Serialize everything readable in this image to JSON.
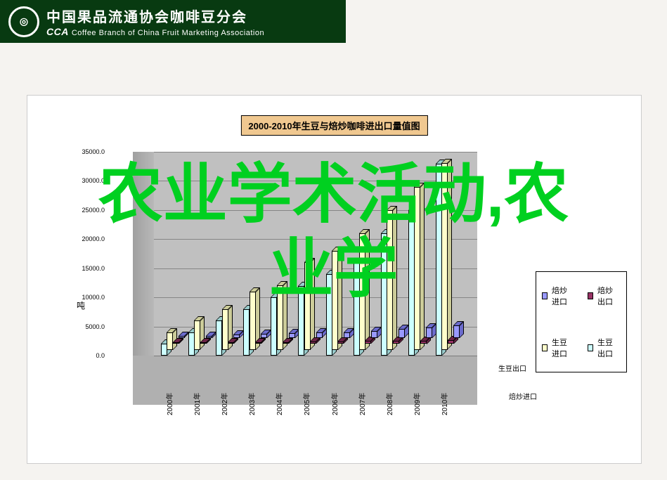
{
  "header": {
    "title_cn": "中国果品流通协会咖啡豆分会",
    "title_en": "Coffee Branch of China Fruit Marketing Association",
    "cca": "CCA",
    "logo_glyph": "◎"
  },
  "overlay": {
    "line1": "农业学术活动,农",
    "line2": "业学"
  },
  "chart": {
    "type": "3d_bar",
    "title": "2000-2010年生豆与焙炒咖啡进出口量值图",
    "title_bg": "#f0c890",
    "background_color": "#c0c0c0",
    "panel_bg": "#ffffff",
    "floor_color": "#b0b0b0",
    "ylabel": "吨",
    "ylim": [
      0,
      35000
    ],
    "ytick_step": 5000,
    "yticks": [
      "0.0",
      "5000.0",
      "10000.0",
      "15000.0",
      "20000.0",
      "25000.0",
      "30000.0",
      "35000.0"
    ],
    "categories": [
      "2000年",
      "2001年",
      "2002年",
      "2003年",
      "2004年",
      "2005年",
      "2006年",
      "2007年",
      "2008年",
      "2009年",
      "2010年"
    ],
    "depth_labels_back": "生豆出口",
    "depth_labels_front": "焙炒进口",
    "series": [
      {
        "name": "焙炒进口",
        "color": "#9999ff",
        "color_dark": "#6b6bcc",
        "values": [
          300,
          400,
          600,
          700,
          800,
          900,
          1000,
          1200,
          1500,
          1800,
          2200
        ]
      },
      {
        "name": "焙炒出口",
        "color": "#993366",
        "color_dark": "#6b2447",
        "values": [
          100,
          150,
          200,
          250,
          300,
          350,
          400,
          450,
          500,
          550,
          600
        ]
      },
      {
        "name": "生豆进口",
        "color": "#ffffcc",
        "color_dark": "#cccc99",
        "values": [
          3000,
          5000,
          7000,
          10000,
          11000,
          15000,
          17000,
          20000,
          24000,
          28000,
          32000
        ]
      },
      {
        "name": "生豆出口",
        "color": "#ccffff",
        "color_dark": "#99cccc",
        "values": [
          2000,
          4000,
          6000,
          8000,
          10000,
          12000,
          14000,
          16000,
          21000,
          25000,
          33000
        ]
      }
    ],
    "legend_order": [
      "焙炒进口",
      "焙炒出口",
      "生豆进口",
      "生豆出口"
    ]
  }
}
